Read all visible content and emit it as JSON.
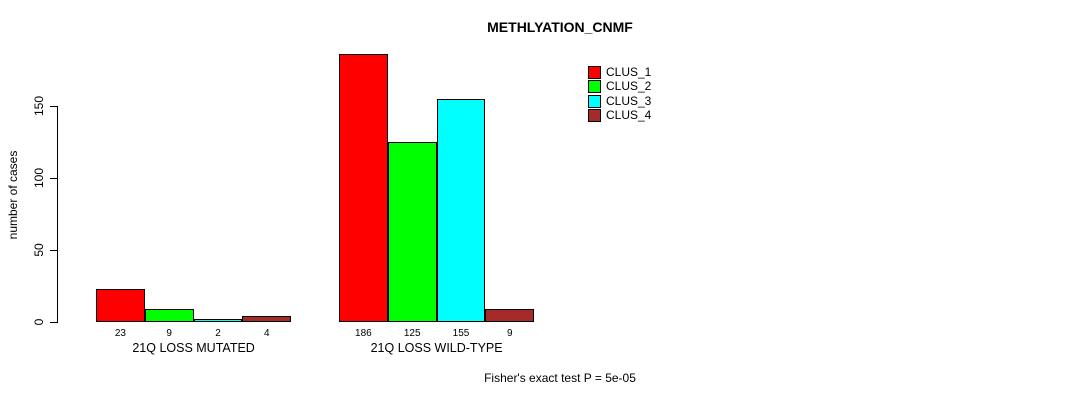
{
  "chart_data": {
    "type": "bar",
    "title": "METHLYATION_CNMF",
    "ylabel": "number of cases",
    "xlabel": "",
    "ylim": [
      0,
      150
    ],
    "yticks": [
      0,
      50,
      100,
      150
    ],
    "grid": false,
    "legend_position": "top-right",
    "groups": [
      "21Q LOSS MUTATED",
      "21Q LOSS WILD-TYPE"
    ],
    "series": [
      {
        "name": "CLUS_1",
        "color": "#FF0000",
        "values": [
          23,
          186
        ]
      },
      {
        "name": "CLUS_2",
        "color": "#00FF00",
        "values": [
          9,
          125
        ]
      },
      {
        "name": "CLUS_3",
        "color": "#00FFFF",
        "values": [
          2,
          155
        ]
      },
      {
        "name": "CLUS_4",
        "color": "#A52A2A",
        "values": [
          4,
          9
        ]
      }
    ],
    "annotation": "Fisher's exact test P = 5e-05"
  }
}
